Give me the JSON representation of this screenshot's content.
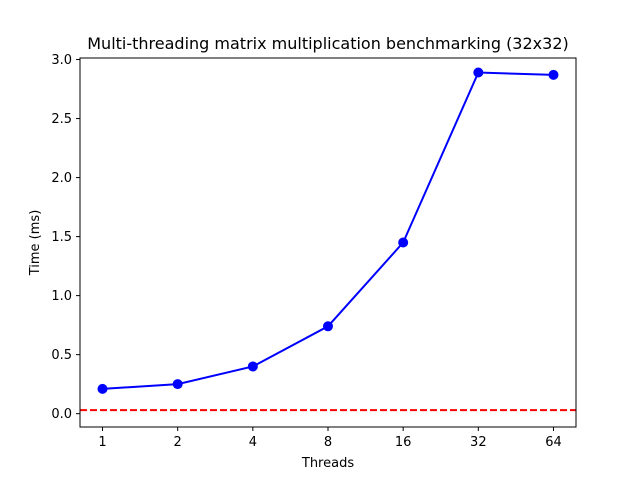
{
  "chart_data": {
    "type": "line",
    "title": "Multi-threading matrix multiplication benchmarking (32x32)",
    "xlabel": "Threads",
    "ylabel": "Time (ms)",
    "categories": [
      "1",
      "2",
      "4",
      "8",
      "16",
      "32",
      "64"
    ],
    "series": [
      {
        "values": [
          0.21,
          0.25,
          0.4,
          0.74,
          1.45,
          2.89,
          2.87
        ],
        "color": "#0000ff",
        "marker": "circle"
      }
    ],
    "reference_line": {
      "value": 0.03,
      "color": "#ff0000",
      "style": "dashed"
    },
    "ylim": [
      -0.113,
      3.013
    ],
    "yticks": [
      0.0,
      0.5,
      1.0,
      1.5,
      2.0,
      2.5,
      3.0
    ],
    "ytick_labels": [
      "0.0",
      "0.5",
      "1.0",
      "1.5",
      "2.0",
      "2.5",
      "3.0"
    ],
    "grid": false,
    "legend": "none"
  }
}
